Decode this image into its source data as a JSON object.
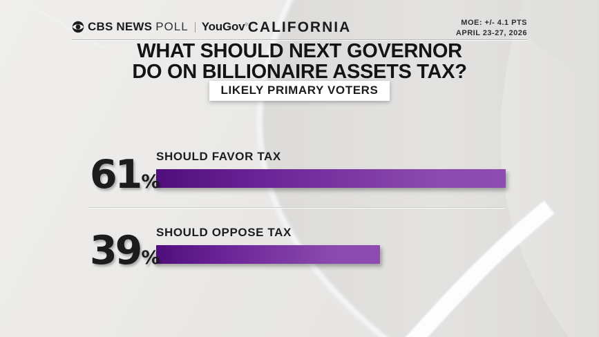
{
  "header": {
    "brand_cbs": "CBS NEWS",
    "brand_poll": "POLL",
    "brand_partner": "YouGov",
    "brand_partner_mark": "®",
    "region": "CALIFORNIA",
    "moe_line1": "MOE: +/- 4.1 PTS",
    "moe_line2": "APRIL 23-27, 2026"
  },
  "title": {
    "line1": "WHAT SHOULD NEXT GOVERNOR",
    "line2": "DO ON BILLIONAIRE ASSETS TAX?"
  },
  "subtitle": "LIKELY PRIMARY VOTERS",
  "chart_data": {
    "type": "bar",
    "orientation": "horizontal",
    "title": "WHAT SHOULD NEXT GOVERNOR DO ON BILLIONAIRE ASSETS TAX?",
    "subtitle": "LIKELY PRIMARY VOTERS",
    "categories": [
      "SHOULD FAVOR TAX",
      "SHOULD OPPOSE TAX"
    ],
    "values": [
      61,
      39
    ],
    "value_labels": [
      "61",
      "39"
    ],
    "unit": "%",
    "xlim": [
      0,
      100
    ],
    "grid": false,
    "legend": false,
    "bar_color_start": "#4f0e7c",
    "bar_color_end": "#8e4cb3"
  },
  "colors": {
    "background": "#e9e8e6",
    "text": "#1b1b1b",
    "bar_dark": "#4f0e7c",
    "bar_light": "#8e4cb3",
    "badge_bg": "#ffffff"
  }
}
